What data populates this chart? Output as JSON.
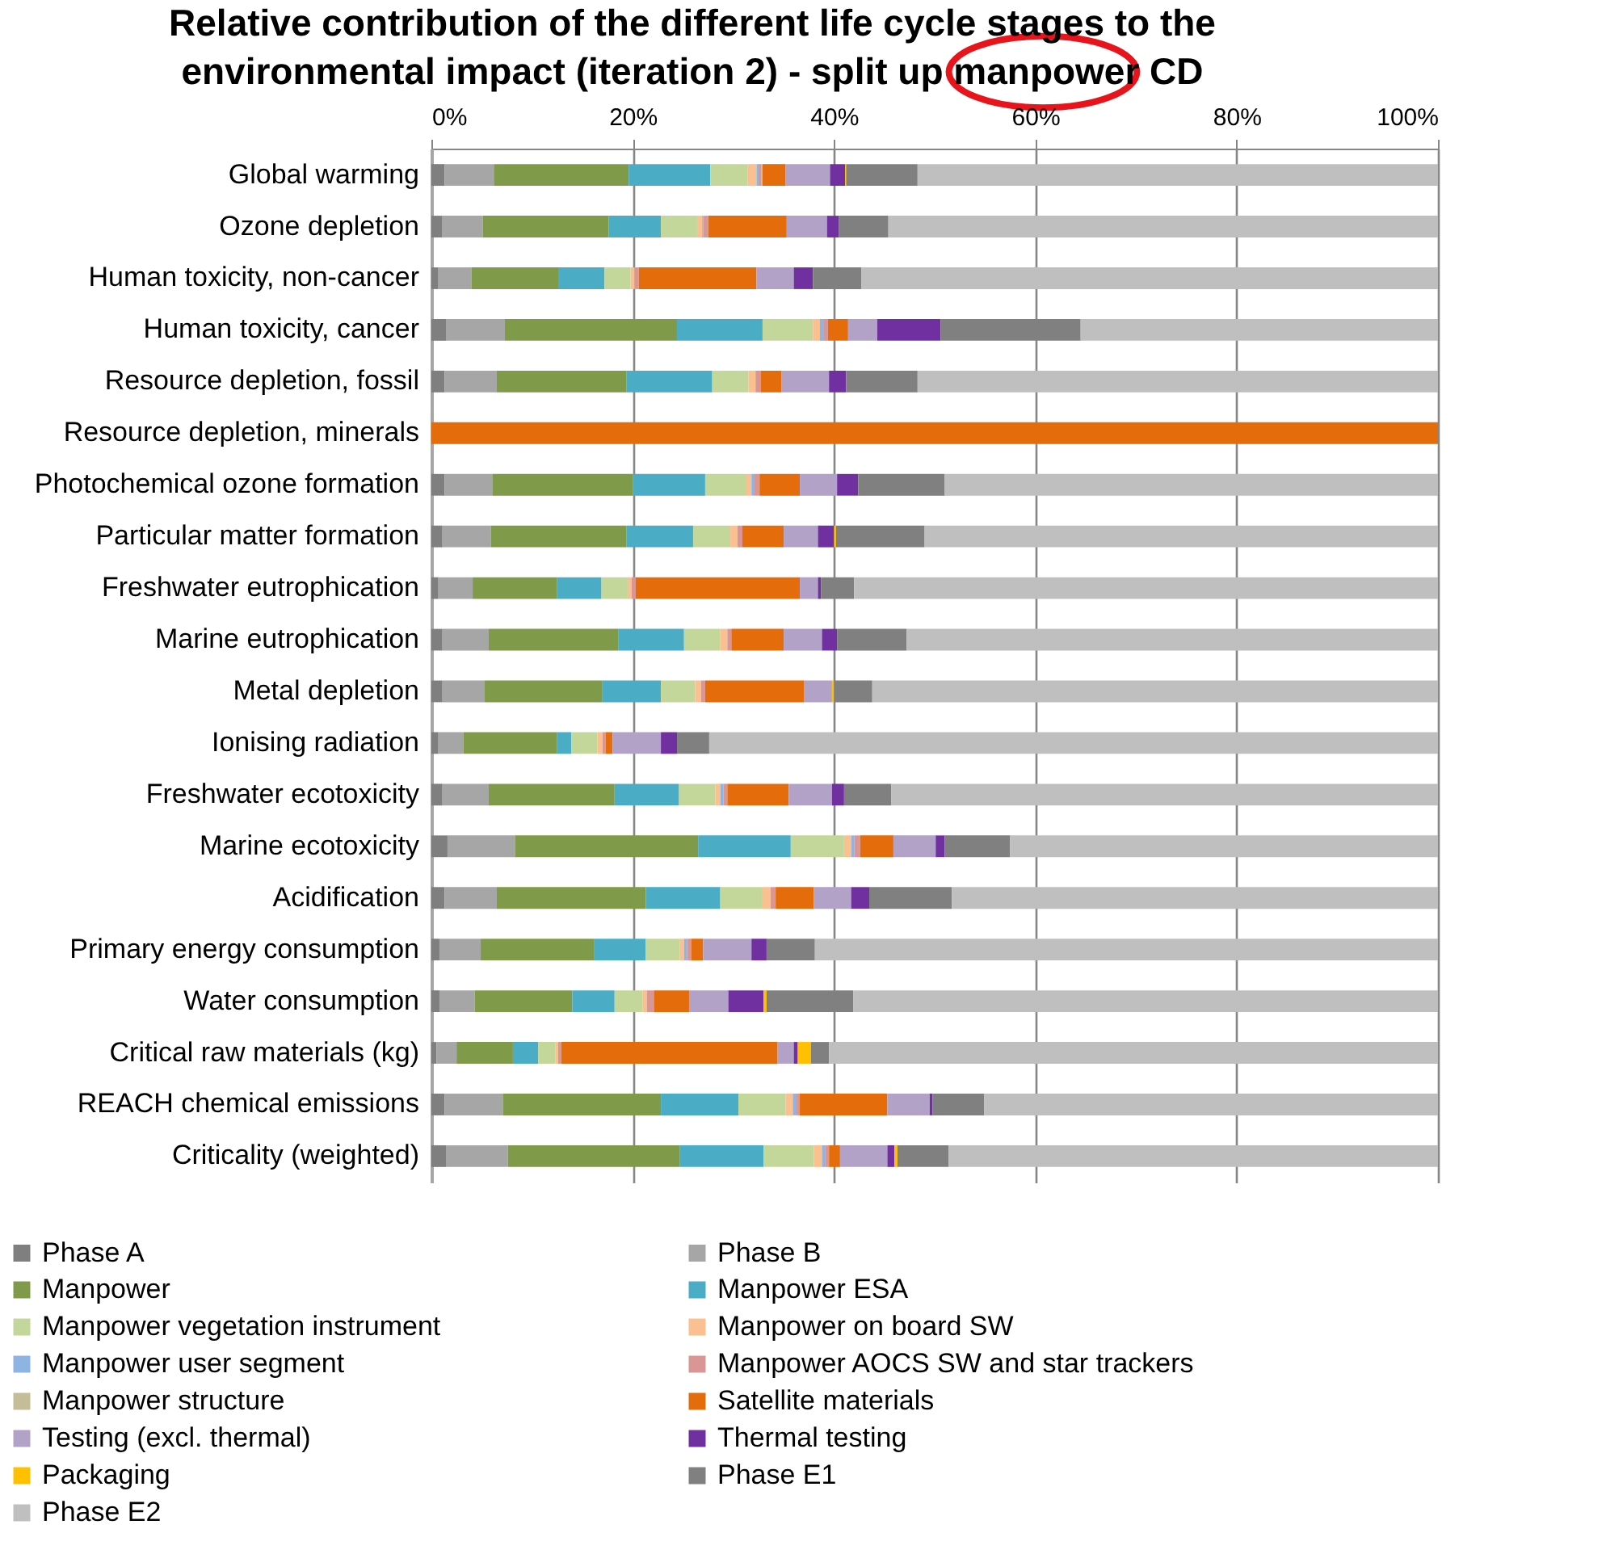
{
  "chart_data": {
    "type": "bar",
    "orientation": "horizontal",
    "stacked": true,
    "title": "Relative contribution of the different life cycle stages to the\nenvironmental impact (iteration 2) - split up manpower CD",
    "categories": [
      "Global warming",
      "Ozone depletion",
      "Human toxicity, non-cancer",
      "Human toxicity, cancer",
      "Resource depletion, fossil",
      "Resource depletion, minerals",
      "Photochemical ozone formation ",
      "Particular matter formation",
      "Freshwater eutrophication",
      "Marine eutrophication",
      "Metal depletion",
      "Ionising radiation",
      "Freshwater ecotoxicity",
      "Marine ecotoxicity",
      "Acidification",
      "Primary energy consumption",
      "Water consumption",
      "Critical raw materials (kg)",
      "REACH chemical emissions",
      "Criticality (weighted)"
    ],
    "xlim": [
      0,
      100
    ],
    "xticks": [
      {
        "value": 0,
        "label": "0%"
      },
      {
        "value": 20,
        "label": "20%"
      },
      {
        "value": 40,
        "label": "40%"
      },
      {
        "value": 60,
        "label": "60%"
      },
      {
        "value": 80,
        "label": "80%"
      },
      {
        "value": 100,
        "label": "100%"
      }
    ],
    "grid": "x",
    "legend": "bottom",
    "series": [
      {
        "name": "Phase A",
        "color": "#7f7f7f",
        "values": [
          1.3,
          1.1,
          0.7,
          1.5,
          1.3,
          0,
          1.3,
          1.1,
          0.7,
          1.1,
          1.1,
          0.7,
          1.1,
          1.6,
          1.3,
          0.8,
          0.8,
          0.5,
          1.3,
          1.5
        ]
      },
      {
        "name": "Phase B",
        "color": "#a6a6a6",
        "values": [
          4.9,
          4.0,
          3.3,
          5.8,
          5.2,
          0,
          4.8,
          4.8,
          3.4,
          4.6,
          4.2,
          2.5,
          4.6,
          6.7,
          5.2,
          4.1,
          3.5,
          2.0,
          5.8,
          6.1
        ]
      },
      {
        "name": "Manpower",
        "color": "#7f9a48",
        "values": [
          13.4,
          12.5,
          8.6,
          17.1,
          12.9,
          0,
          13.9,
          13.5,
          8.4,
          12.9,
          11.7,
          9.3,
          12.5,
          18.2,
          14.8,
          11.3,
          9.7,
          5.6,
          15.7,
          17.1
        ]
      },
      {
        "name": "Manpower ESA",
        "color": "#4bacc6",
        "values": [
          8.1,
          5.2,
          4.6,
          8.5,
          8.5,
          0,
          7.2,
          6.6,
          4.4,
          6.5,
          5.8,
          1.4,
          6.4,
          9.2,
          7.4,
          5.1,
          4.2,
          2.5,
          7.7,
          8.3
        ]
      },
      {
        "name": "Manpower vegetation instrument",
        "color": "#c4d79b",
        "values": [
          3.7,
          3.6,
          2.6,
          5.0,
          3.6,
          0,
          4.1,
          3.7,
          2.6,
          3.6,
          3.4,
          2.6,
          3.6,
          5.3,
          4.2,
          3.4,
          2.8,
          1.7,
          4.7,
          5.0
        ]
      },
      {
        "name": "Manpower on board SW",
        "color": "#fac090",
        "values": [
          0.9,
          0.5,
          0.4,
          0.7,
          0.7,
          0,
          0.5,
          0.7,
          0.4,
          0.7,
          0.6,
          0.5,
          0.5,
          0.7,
          0.8,
          0.4,
          0.4,
          0.3,
          0.7,
          0.8
        ]
      },
      {
        "name": "Manpower user segment",
        "color": "#8db4e2",
        "values": [
          0.2,
          0.1,
          0,
          0.4,
          0,
          0,
          0.3,
          0,
          0,
          0,
          0,
          0,
          0.3,
          0.3,
          0,
          0.3,
          0,
          0,
          0.3,
          0.3
        ]
      },
      {
        "name": "Manpower AOCS SW and star trackers",
        "color": "#da9694",
        "values": [
          0.3,
          0.5,
          0.4,
          0.4,
          0.5,
          0,
          0.5,
          0.5,
          0.4,
          0.4,
          0.4,
          0.3,
          0.4,
          0.6,
          0.5,
          0.4,
          0.7,
          0.3,
          0.4,
          0.4
        ]
      },
      {
        "name": "Manpower structure",
        "color": "#c4bd97",
        "values": [
          0.1,
          0,
          0,
          0,
          0,
          0,
          0,
          0,
          0,
          0,
          0,
          0,
          0,
          0,
          0,
          0,
          0,
          0,
          0,
          0
        ]
      },
      {
        "name": "Satellite materials",
        "color": "#e46c0a",
        "values": [
          2.3,
          7.8,
          11.7,
          2.0,
          2.1,
          100,
          4.0,
          4.1,
          16.3,
          5.2,
          9.8,
          0.7,
          6.1,
          3.3,
          3.8,
          1.2,
          3.5,
          21.5,
          8.7,
          1.1
        ]
      },
      {
        "name": "Testing (excl. thermal)",
        "color": "#b3a2c7",
        "values": [
          4.4,
          4.0,
          3.7,
          2.9,
          4.7,
          0,
          3.7,
          3.4,
          1.8,
          3.8,
          2.8,
          4.8,
          4.3,
          4.2,
          3.7,
          4.8,
          3.9,
          1.6,
          4.2,
          4.7
        ]
      },
      {
        "name": "Thermal testing",
        "color": "#7030a0",
        "values": [
          1.5,
          1.2,
          1.9,
          6.3,
          1.7,
          0,
          2.1,
          1.6,
          0.3,
          1.5,
          0,
          1.6,
          1.2,
          0.9,
          1.8,
          1.5,
          3.5,
          0.4,
          0.3,
          0.7
        ]
      },
      {
        "name": "Packaging",
        "color": "#ffc000",
        "values": [
          0.1,
          0,
          0,
          0,
          0,
          0,
          0,
          0.2,
          0,
          0,
          0.2,
          0,
          0,
          0,
          0,
          0,
          0.3,
          1.3,
          0,
          0.3
        ]
      },
      {
        "name": "Phase E1",
        "color": "#808080",
        "values": [
          7.1,
          4.9,
          4.8,
          13.9,
          7.1,
          0,
          8.6,
          8.8,
          3.3,
          6.9,
          3.8,
          3.2,
          4.7,
          6.5,
          8.2,
          4.8,
          8.6,
          1.8,
          5.1,
          5.1
        ]
      },
      {
        "name": "Phase E2",
        "color": "#bfbfbf",
        "values": [
          51.7,
          54.6,
          57.3,
          35.5,
          51.7,
          0,
          49.0,
          51.0,
          58.0,
          52.8,
          56.2,
          72.4,
          54.3,
          42.5,
          48.3,
          61.9,
          58.1,
          60.5,
          45.1,
          48.6
        ]
      }
    ]
  }
}
